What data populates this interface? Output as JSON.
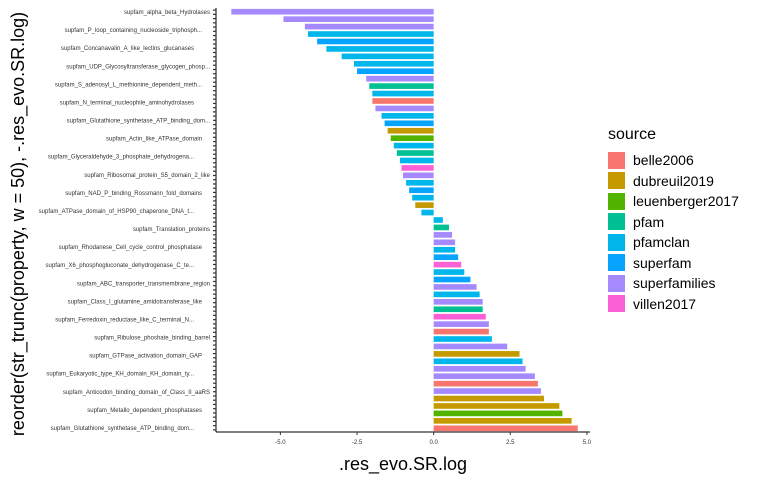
{
  "chart_data": {
    "type": "bar",
    "orientation": "horizontal",
    "xlabel": ".res_evo.SR.log",
    "ylabel": "reorder(str_trunc(property, w = 50), -.res_evo.SR.log)",
    "xlim": [
      -7.1,
      5.1
    ],
    "x_ticks": [
      -5.0,
      -2.5,
      0.0,
      2.5,
      5.0
    ],
    "x_tick_labels": [
      "-5.0",
      "-2.5",
      "0.0",
      "2.5",
      "5.0"
    ],
    "grid": false,
    "legend_position": "right",
    "legend_title": "source",
    "legend": [
      {
        "name": "belle2006",
        "color": "#F8766D"
      },
      {
        "name": "dubreuil2019",
        "color": "#C49A00"
      },
      {
        "name": "leuenberger2017",
        "color": "#53B400"
      },
      {
        "name": "pfam",
        "color": "#00C094"
      },
      {
        "name": "pfamclan",
        "color": "#00B6EB"
      },
      {
        "name": "superfam",
        "color": "#06A4FF"
      },
      {
        "name": "superfamilies",
        "color": "#A58AFF"
      },
      {
        "name": "villen2017",
        "color": "#FB61D7"
      }
    ],
    "visible_category_labels": [
      "supfam_alpha_beta_Hydrolases",
      "supfam_P_loop_containing_nucleoside_triphosph...",
      "supfam_Concanavalin_A_like_lectins_glucanases",
      "supfam_UDP_Glycosyltransferase_glycogen_phosp...",
      "supfam_S_adenosyl_L_methionine_dependent_meth...",
      "supfam_N_terminal_nucleophile_aminohydrolases",
      "supfam_Glutathione_synthetase_ATP_binding_dom...",
      "supfam_Actin_like_ATPase_domain",
      "supfam_Glyceraldehyde_3_phosphate_dehydrogena...",
      "supfam_Ribosomal_protein_S5_domain_2_like",
      "supfam_NAD_P_binding_Rossmann_fold_domains",
      "supfam_ATPase_domain_of_HSP90_chaperone_DNA_t...",
      "supfam_Translation_proteins",
      "supfam_Rhodanese_Cell_cycle_control_phosphatase",
      "supfam_X6_phosphogluconate_dehydrogenase_C_te...",
      "supfam_ABC_transporter_transmembrane_region",
      "supfam_Class_I_glutamine_amidotransferase_like",
      "supfam_Ferredoxin_reductase_like_C_terminal_N...",
      "supfam_Ribulose_phoshate_binding_barrel",
      "supfam_GTPase_activation_domain_GAP",
      "supfam_Eukaryotic_type_KH_domain_KH_domain_ty...",
      "supfam_Anticodon_binding_domain_of_Class_II_aaRS",
      "supfam_Metallo_dependent_phosphatases",
      "supfam_Glutathione_synthetase_ATP_binding_dom..."
    ],
    "series": [
      {
        "name": "superfamilies",
        "color": "#A58AFF",
        "values": [
          -6.6,
          -4.9,
          -4.2,
          -2.2,
          -1.9,
          -1.0,
          0.6,
          0.7,
          1.4,
          1.6,
          1.8,
          2.4,
          3.0,
          3.3,
          3.5
        ]
      },
      {
        "name": "pfamclan",
        "color": "#00B6EB",
        "values": [
          -4.1,
          -3.5,
          -3.0,
          -2.6,
          -2.0,
          -1.7,
          -1.3,
          -1.1,
          -0.9,
          -0.7,
          -0.4,
          0.3,
          0.7,
          1.0,
          1.5,
          1.9,
          2.9
        ]
      },
      {
        "name": "superfam",
        "color": "#06A4FF",
        "values": [
          -3.8,
          -2.5,
          -1.6,
          -0.8,
          0.8,
          1.2
        ]
      },
      {
        "name": "pfam",
        "color": "#00C094",
        "values": [
          -2.1,
          -1.2,
          0.5,
          1.6
        ]
      },
      {
        "name": "dubreuil2019",
        "color": "#C49A00",
        "values": [
          -1.5,
          -0.6,
          2.8,
          3.6,
          4.1,
          4.5
        ]
      },
      {
        "name": "leuenberger2017",
        "color": "#53B400",
        "values": [
          -1.4,
          4.2
        ]
      },
      {
        "name": "villen2017",
        "color": "#FB61D7",
        "values": [
          -1.05,
          0.9,
          1.7
        ]
      },
      {
        "name": "belle2006",
        "color": "#F8766D",
        "values": [
          -2.0,
          3.4,
          1.8,
          4.7
        ]
      }
    ]
  }
}
